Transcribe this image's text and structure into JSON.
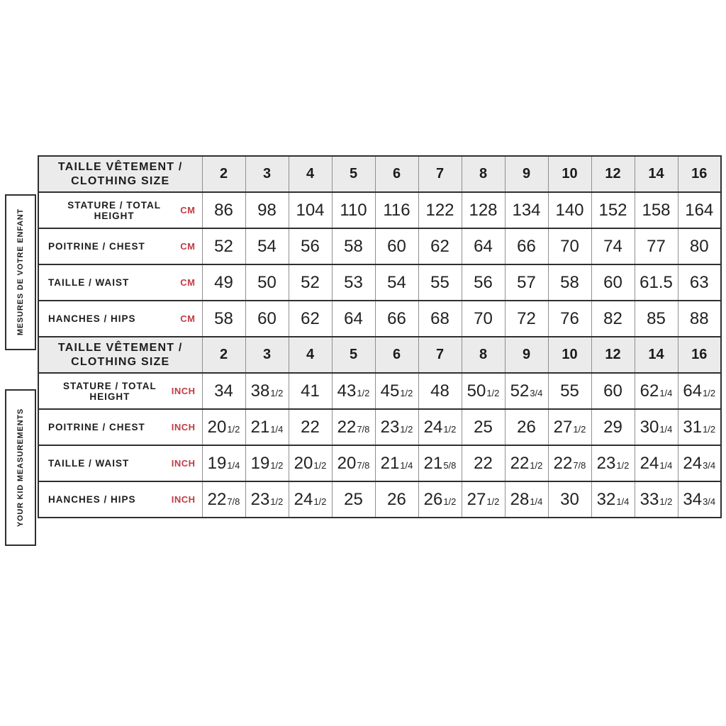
{
  "colors": {
    "accent_red": "#c23b44",
    "header_bg": "#ebebeb",
    "border_dark": "#2f2f2f"
  },
  "chart_data": {
    "type": "table",
    "size_header": {
      "label_line1": "TAILLE VÊTEMENT /",
      "label_line2": "CLOTHING SIZE",
      "sizes": [
        "2",
        "3",
        "4",
        "5",
        "6",
        "7",
        "8",
        "9",
        "10",
        "12",
        "14",
        "16"
      ]
    },
    "sections": [
      {
        "sidebar": "MESURES DE VOTRE ENFANT",
        "unit": "CM",
        "rows": [
          {
            "label": "STATURE / TOTAL HEIGHT",
            "values": [
              "86",
              "98",
              "104",
              "110",
              "116",
              "122",
              "128",
              "134",
              "140",
              "152",
              "158",
              "164"
            ]
          },
          {
            "label": "POITRINE / CHEST",
            "values": [
              "52",
              "54",
              "56",
              "58",
              "60",
              "62",
              "64",
              "66",
              "70",
              "74",
              "77",
              "80"
            ]
          },
          {
            "label": "TAILLE / WAIST",
            "values": [
              "49",
              "50",
              "52",
              "53",
              "54",
              "55",
              "56",
              "57",
              "58",
              "60",
              "61.5",
              "63"
            ]
          },
          {
            "label": "HANCHES / HIPS",
            "values": [
              "58",
              "60",
              "62",
              "64",
              "66",
              "68",
              "70",
              "72",
              "76",
              "82",
              "85",
              "88"
            ]
          }
        ]
      },
      {
        "sidebar": "YOUR KID MEASUREMENTS",
        "unit": "INCH",
        "rows": [
          {
            "label": "STATURE / TOTAL HEIGHT",
            "values": [
              "34",
              "38 1/2",
              "41",
              "43 1/2",
              "45 1/2",
              "48",
              "50 1/2",
              "52 3/4",
              "55",
              "60",
              "62 1/4",
              "64 1/2"
            ]
          },
          {
            "label": "POITRINE / CHEST",
            "values": [
              "20 1/2",
              "21 1/4",
              "22",
              "22 7/8",
              "23 1/2",
              "24 1/2",
              "25",
              "26",
              "27 1/2",
              "29",
              "30 1/4",
              "31 1/2"
            ]
          },
          {
            "label": "TAILLE / WAIST",
            "values": [
              "19 1/4",
              "19 1/2",
              "20 1/2",
              "20 7/8",
              "21 1/4",
              "21 5/8",
              "22",
              "22 1/2",
              "22 7/8",
              "23 1/2",
              "24 1/4",
              "24 3/4"
            ]
          },
          {
            "label": "HANCHES / HIPS",
            "values": [
              "22 7/8",
              "23 1/2",
              "24 1/2",
              "25",
              "26",
              "26 1/2",
              "27 1/2",
              "28 1/4",
              "30",
              "32 1/4",
              "33 1/2",
              "34 3/4"
            ]
          }
        ]
      }
    ]
  }
}
